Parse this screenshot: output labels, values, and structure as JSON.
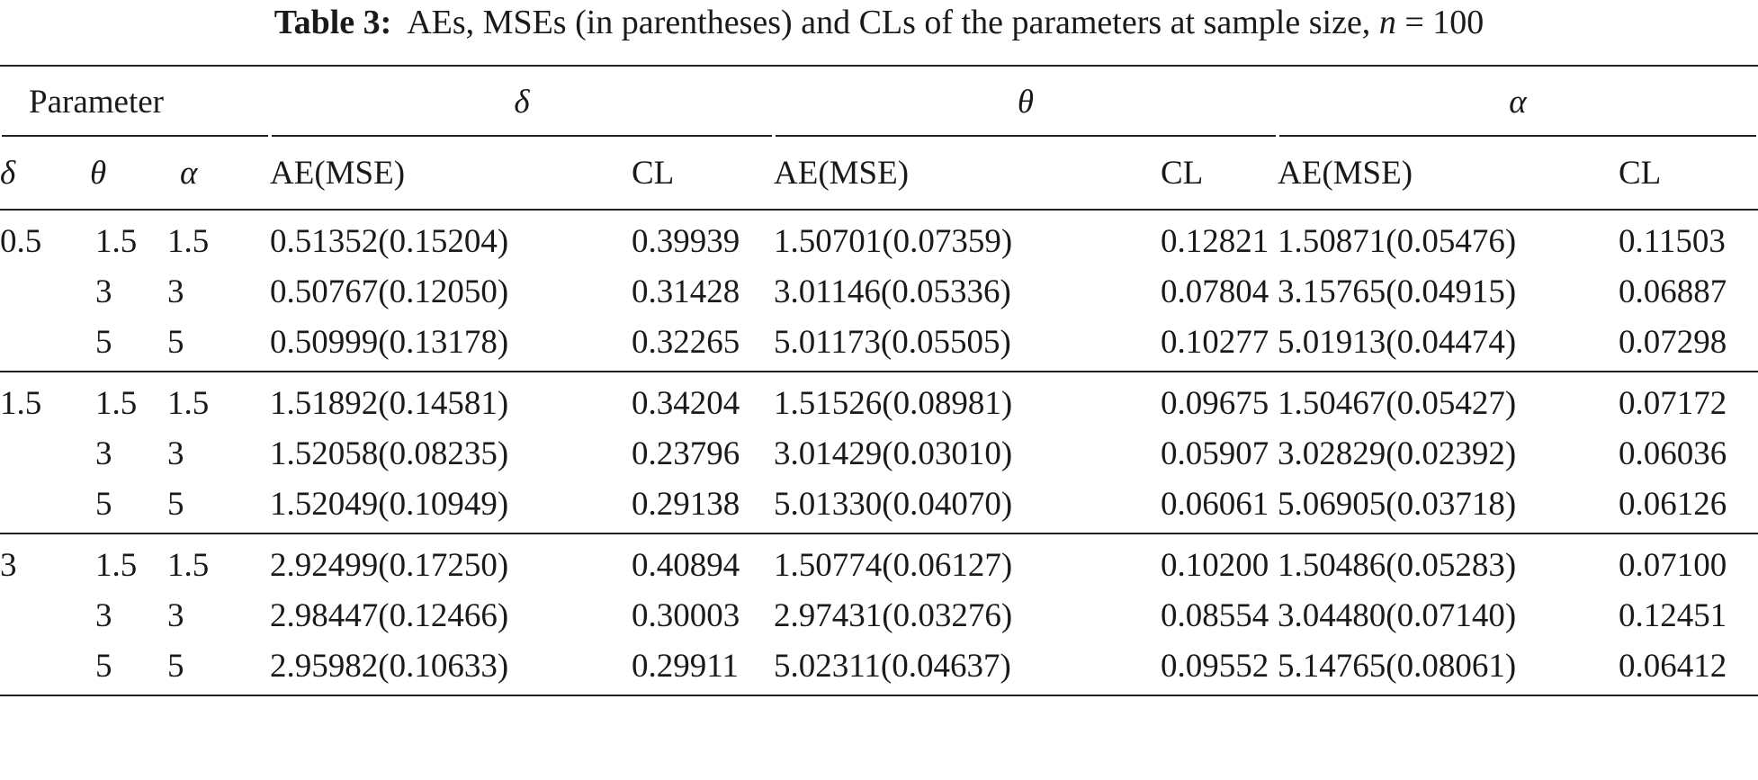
{
  "caption": {
    "label": "Table 3:",
    "text": "AEs, MSEs (in parentheses) and CLs of the parameters at sample size,",
    "n_symbol": "n",
    "n_value": "= 100"
  },
  "header": {
    "parameter": "Parameter",
    "group_delta": "δ",
    "group_theta": "θ",
    "group_alpha": "α",
    "col_delta": "δ",
    "col_theta": "θ",
    "col_alpha": "α",
    "ae_mse": "AE(MSE)",
    "cl": "CL"
  },
  "groups": [
    {
      "rows": [
        {
          "delta": "0.5",
          "theta": "1.5",
          "alpha": "1.5",
          "d_ae": "0.51352(0.15204)",
          "d_cl": "0.39939",
          "t_ae": "1.50701(0.07359)",
          "t_cl": "0.12821",
          "a_ae": "1.50871(0.05476)",
          "a_cl": "0.11503"
        },
        {
          "delta": "",
          "theta": "3",
          "alpha": "3",
          "d_ae": "0.50767(0.12050)",
          "d_cl": "0.31428",
          "t_ae": "3.01146(0.05336)",
          "t_cl": "0.07804",
          "a_ae": "3.15765(0.04915)",
          "a_cl": "0.06887"
        },
        {
          "delta": "",
          "theta": "5",
          "alpha": "5",
          "d_ae": "0.50999(0.13178)",
          "d_cl": "0.32265",
          "t_ae": "5.01173(0.05505)",
          "t_cl": "0.10277",
          "a_ae": "5.01913(0.04474)",
          "a_cl": "0.07298"
        }
      ]
    },
    {
      "rows": [
        {
          "delta": "1.5",
          "theta": "1.5",
          "alpha": "1.5",
          "d_ae": "1.51892(0.14581)",
          "d_cl": "0.34204",
          "t_ae": "1.51526(0.08981)",
          "t_cl": "0.09675",
          "a_ae": "1.50467(0.05427)",
          "a_cl": "0.07172"
        },
        {
          "delta": "",
          "theta": "3",
          "alpha": "3",
          "d_ae": "1.52058(0.08235)",
          "d_cl": "0.23796",
          "t_ae": "3.01429(0.03010)",
          "t_cl": "0.05907",
          "a_ae": "3.02829(0.02392)",
          "a_cl": "0.06036"
        },
        {
          "delta": "",
          "theta": "5",
          "alpha": "5",
          "d_ae": "1.52049(0.10949)",
          "d_cl": "0.29138",
          "t_ae": "5.01330(0.04070)",
          "t_cl": "0.06061",
          "a_ae": "5.06905(0.03718)",
          "a_cl": "0.06126"
        }
      ]
    },
    {
      "rows": [
        {
          "delta": "3",
          "theta": "1.5",
          "alpha": "1.5",
          "d_ae": "2.92499(0.17250)",
          "d_cl": "0.40894",
          "t_ae": "1.50774(0.06127)",
          "t_cl": "0.10200",
          "a_ae": "1.50486(0.05283)",
          "a_cl": "0.07100"
        },
        {
          "delta": "",
          "theta": "3",
          "alpha": "3",
          "d_ae": "2.98447(0.12466)",
          "d_cl": "0.30003",
          "t_ae": "2.97431(0.03276)",
          "t_cl": "0.08554",
          "a_ae": "3.04480(0.07140)",
          "a_cl": "0.12451"
        },
        {
          "delta": "",
          "theta": "5",
          "alpha": "5",
          "d_ae": "2.95982(0.10633)",
          "d_cl": "0.29911",
          "t_ae": "5.02311(0.04637)",
          "t_cl": "0.09552",
          "a_ae": "5.14765(0.08061)",
          "a_cl": "0.06412"
        }
      ]
    }
  ]
}
